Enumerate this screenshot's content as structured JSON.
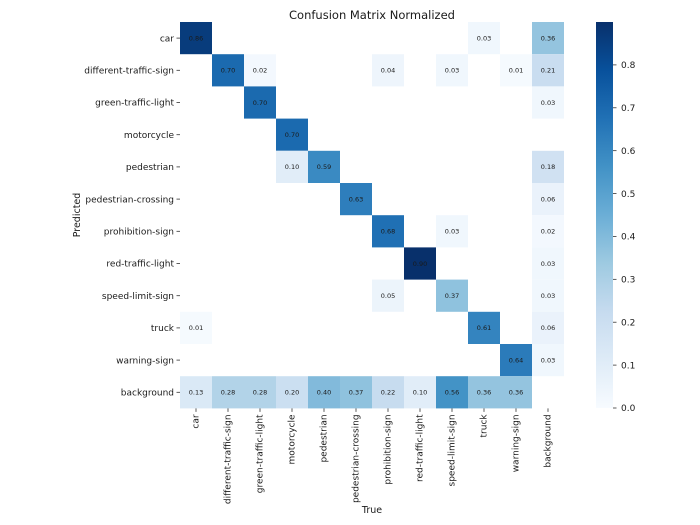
{
  "chart_data": {
    "type": "heatmap",
    "title": "Confusion Matrix Normalized",
    "xlabel": "True",
    "ylabel": "Predicted",
    "x_categories": [
      "car",
      "different-traffic-sign",
      "green-traffic-light",
      "motorcycle",
      "pedestrian",
      "pedestrian-crossing",
      "prohibition-sign",
      "red-traffic-light",
      "speed-limit-sign",
      "truck",
      "warning-sign",
      "background"
    ],
    "y_categories": [
      "car",
      "different-traffic-sign",
      "green-traffic-light",
      "motorcycle",
      "pedestrian",
      "pedestrian-crossing",
      "prohibition-sign",
      "red-traffic-light",
      "speed-limit-sign",
      "truck",
      "warning-sign",
      "background"
    ],
    "matrix": [
      [
        0.86,
        null,
        null,
        null,
        null,
        null,
        null,
        null,
        null,
        0.03,
        null,
        0.36
      ],
      [
        null,
        0.7,
        0.02,
        null,
        null,
        null,
        0.04,
        null,
        0.03,
        null,
        0.01,
        0.21
      ],
      [
        null,
        null,
        0.7,
        null,
        null,
        null,
        null,
        null,
        null,
        null,
        null,
        0.03
      ],
      [
        null,
        null,
        null,
        0.7,
        null,
        null,
        null,
        null,
        null,
        null,
        null,
        null
      ],
      [
        null,
        null,
        null,
        0.1,
        0.59,
        null,
        null,
        null,
        null,
        null,
        null,
        0.18
      ],
      [
        null,
        null,
        null,
        null,
        null,
        0.63,
        null,
        null,
        null,
        null,
        null,
        0.06
      ],
      [
        null,
        null,
        null,
        null,
        null,
        null,
        0.68,
        null,
        0.03,
        null,
        null,
        0.02
      ],
      [
        null,
        null,
        null,
        null,
        null,
        null,
        null,
        0.9,
        null,
        null,
        null,
        0.03
      ],
      [
        null,
        null,
        null,
        null,
        null,
        null,
        0.05,
        null,
        0.37,
        null,
        null,
        0.03
      ],
      [
        0.01,
        null,
        null,
        null,
        null,
        null,
        null,
        null,
        null,
        0.61,
        null,
        0.06
      ],
      [
        null,
        null,
        null,
        null,
        null,
        null,
        null,
        null,
        null,
        null,
        0.64,
        0.03
      ],
      [
        0.13,
        0.28,
        0.28,
        0.2,
        0.4,
        0.37,
        0.22,
        0.1,
        0.56,
        0.36,
        0.36,
        null
      ]
    ],
    "colorbar": {
      "range": [
        0.0,
        0.9
      ],
      "ticks": [
        "0.0",
        "0.1",
        "0.2",
        "0.3",
        "0.4",
        "0.5",
        "0.6",
        "0.7",
        "0.8"
      ],
      "colormap": "Blues"
    }
  }
}
